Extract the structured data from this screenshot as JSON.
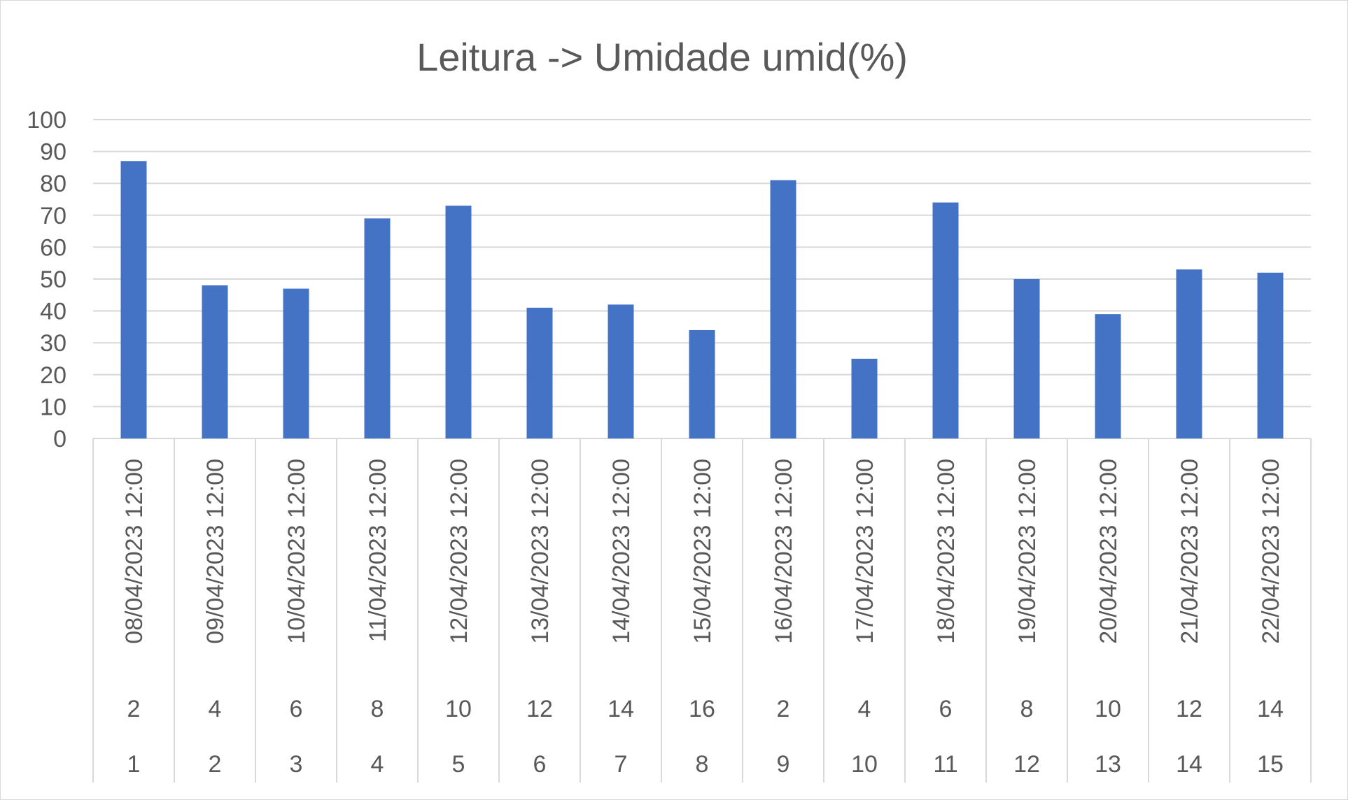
{
  "chart_data": {
    "type": "bar",
    "title": "Leitura -> Umidade umid(%)",
    "ylim": [
      0,
      100
    ],
    "ytick_step": 10,
    "grid": true,
    "categories": [
      {
        "date": "08/04/2023 12:00",
        "level2": "2",
        "level1": "1"
      },
      {
        "date": "09/04/2023 12:00",
        "level2": "4",
        "level1": "2"
      },
      {
        "date": "10/04/2023 12:00",
        "level2": "6",
        "level1": "3"
      },
      {
        "date": "11/04/2023 12:00",
        "level2": "8",
        "level1": "4"
      },
      {
        "date": "12/04/2023 12:00",
        "level2": "10",
        "level1": "5"
      },
      {
        "date": "13/04/2023 12:00",
        "level2": "12",
        "level1": "6"
      },
      {
        "date": "14/04/2023 12:00",
        "level2": "14",
        "level1": "7"
      },
      {
        "date": "15/04/2023 12:00",
        "level2": "16",
        "level1": "8"
      },
      {
        "date": "16/04/2023 12:00",
        "level2": "2",
        "level1": "9"
      },
      {
        "date": "17/04/2023 12:00",
        "level2": "4",
        "level1": "10"
      },
      {
        "date": "18/04/2023 12:00",
        "level2": "6",
        "level1": "11"
      },
      {
        "date": "19/04/2023 12:00",
        "level2": "8",
        "level1": "12"
      },
      {
        "date": "20/04/2023 12:00",
        "level2": "10",
        "level1": "13"
      },
      {
        "date": "21/04/2023 12:00",
        "level2": "12",
        "level1": "14"
      },
      {
        "date": "22/04/2023 12:00",
        "level2": "14",
        "level1": "15"
      }
    ],
    "values": [
      87,
      48,
      47,
      69,
      73,
      41,
      42,
      34,
      81,
      25,
      74,
      50,
      39,
      53,
      52
    ],
    "colors": {
      "bar": "#4472c4",
      "grid": "#d9d9d9",
      "text": "#595959"
    }
  }
}
